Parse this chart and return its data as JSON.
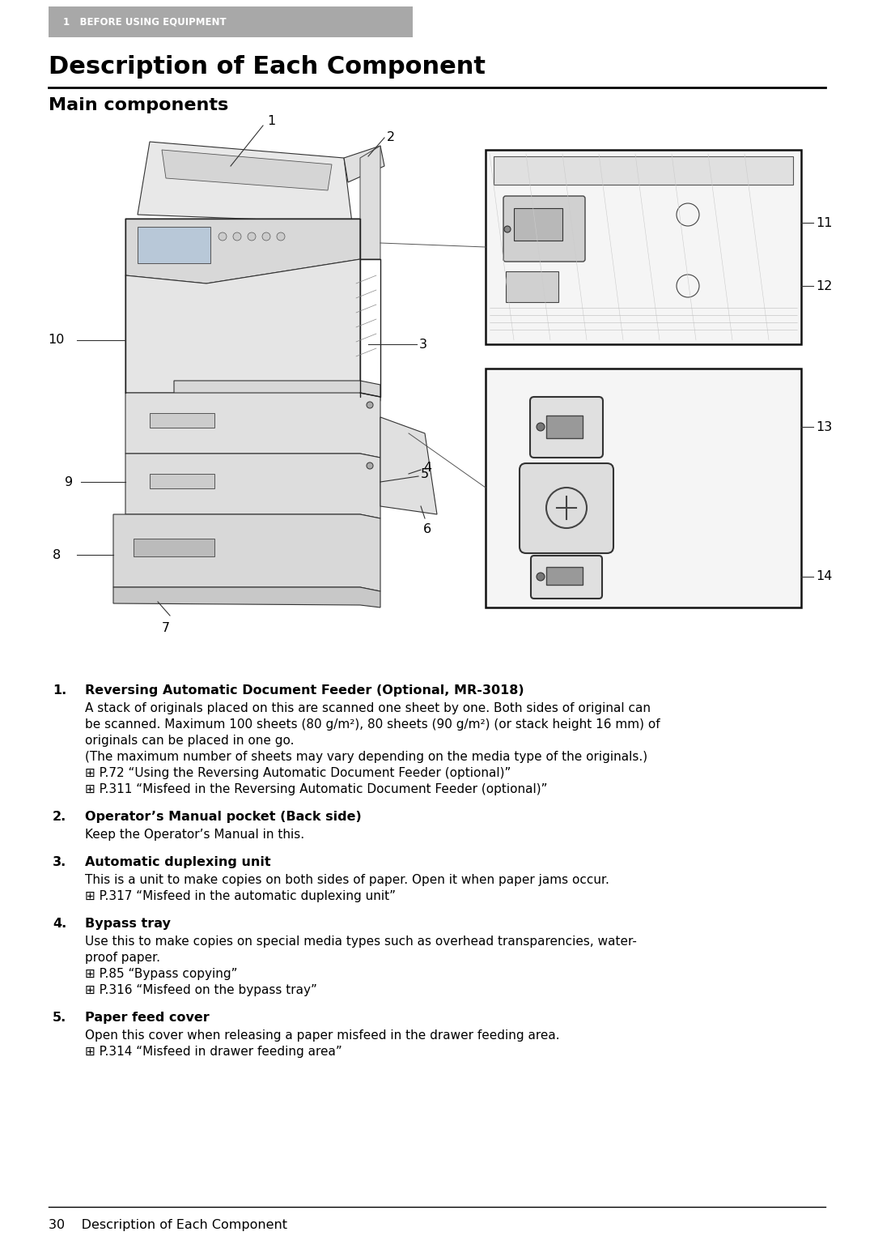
{
  "page_bg": "#ffffff",
  "header_bg": "#a8a8a8",
  "header_text": "1   BEFORE USING EQUIPMENT",
  "header_text_color": "#ffffff",
  "title": "Description of Each Component",
  "subtitle": "Main components",
  "footer_text": "30    Description of Each Component",
  "items": [
    {
      "number": "1.",
      "bold": "Reversing Automatic Document Feeder (Optional, MR-3018)",
      "lines": [
        "A stack of originals placed on this are scanned one sheet by one. Both sides of original can",
        "be scanned. Maximum 100 sheets (80 g/m²), 80 sheets (90 g/m²) (or stack height 16 mm) of",
        "originals can be placed in one go.",
        "(The maximum number of sheets may vary depending on the media type of the originals.)",
        "⊞ P.72 “Using the Reversing Automatic Document Feeder (optional)”",
        "⊞ P.311 “Misfeed in the Reversing Automatic Document Feeder (optional)”"
      ]
    },
    {
      "number": "2.",
      "bold": "Operator’s Manual pocket (Back side)",
      "lines": [
        "Keep the Operator’s Manual in this."
      ]
    },
    {
      "number": "3.",
      "bold": "Automatic duplexing unit",
      "lines": [
        "This is a unit to make copies on both sides of paper. Open it when paper jams occur.",
        "⊞ P.317 “Misfeed in the automatic duplexing unit”"
      ]
    },
    {
      "number": "4.",
      "bold": "Bypass tray",
      "lines": [
        "Use this to make copies on special media types such as overhead transparencies, water-",
        "proof paper.",
        "⊞ P.85 “Bypass copying”",
        "⊞ P.316 “Misfeed on the bypass tray”"
      ]
    },
    {
      "number": "5.",
      "bold": "Paper feed cover",
      "lines": [
        "Open this cover when releasing a paper misfeed in the drawer feeding area.",
        "⊞ P.314 “Misfeed in drawer feeding area”"
      ]
    }
  ]
}
